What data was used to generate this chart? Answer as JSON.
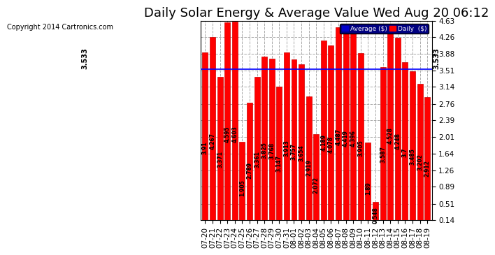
{
  "title": "Daily Solar Energy & Average Value Wed Aug 20 06:12",
  "copyright": "Copyright 2014 Cartronics.com",
  "categories": [
    "07-20",
    "07-21",
    "07-22",
    "07-23",
    "07-24",
    "07-25",
    "07-26",
    "07-27",
    "07-28",
    "07-29",
    "07-30",
    "07-31",
    "08-01",
    "08-02",
    "08-03",
    "08-04",
    "08-05",
    "08-06",
    "08-07",
    "08-08",
    "08-09",
    "08-10",
    "08-11",
    "08-12",
    "08-13",
    "08-14",
    "08-15",
    "08-16",
    "08-17",
    "08-18",
    "08-19"
  ],
  "values": [
    3.91,
    4.267,
    3.371,
    4.595,
    4.603,
    1.905,
    2.789,
    3.361,
    3.825,
    3.768,
    3.147,
    3.913,
    3.757,
    3.654,
    2.919,
    2.072,
    4.189,
    4.078,
    4.487,
    4.419,
    4.396,
    3.905,
    1.89,
    0.548,
    3.587,
    4.528,
    4.248,
    3.7,
    3.485,
    3.202,
    2.912
  ],
  "average_value": 3.533,
  "bar_color": "#ff0000",
  "bar_edge_color": "#cc0000",
  "avg_line_color": "#0000ff",
  "background_color": "#ffffff",
  "plot_bg_color": "#ffffff",
  "grid_color": "#aaaaaa",
  "ylim_min": 0.14,
  "ylim_max": 4.63,
  "yticks": [
    0.14,
    0.51,
    0.89,
    1.26,
    1.64,
    2.01,
    2.39,
    2.76,
    3.14,
    3.51,
    3.88,
    4.26,
    4.63
  ],
  "title_fontsize": 13,
  "tick_fontsize": 7.5,
  "copyright_fontsize": 7,
  "legend_avg_color": "#0000cc",
  "legend_daily_color": "#ff0000"
}
